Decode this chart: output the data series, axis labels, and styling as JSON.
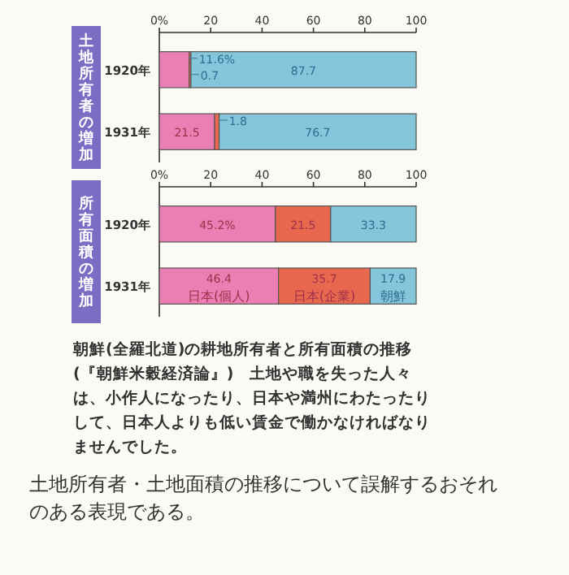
{
  "chart_data": [
    {
      "type": "bar",
      "orientation": "horizontal",
      "stacked": true,
      "title": "土地所有者の増加",
      "categories": [
        "1920年",
        "1931年"
      ],
      "series": [
        {
          "color": "#e97fb3",
          "values": [
            11.6,
            21.5
          ],
          "value_labels": [
            "11.6%",
            "21.5"
          ]
        },
        {
          "color": "#e8684f",
          "values": [
            0.7,
            1.8
          ],
          "value_labels": [
            "0.7",
            "1.8"
          ]
        },
        {
          "color": "#86c6da",
          "values": [
            87.7,
            76.7
          ],
          "value_labels": [
            "87.7",
            "76.7"
          ]
        }
      ],
      "xlim": [
        0,
        100
      ],
      "xticks": [
        {
          "value": 0,
          "label": "0%"
        },
        20,
        40,
        60,
        80,
        100
      ],
      "legend": false,
      "grid": false
    },
    {
      "type": "bar",
      "orientation": "horizontal",
      "stacked": true,
      "title": "所有面積の増加",
      "categories": [
        "1920年",
        "1931年"
      ],
      "series": [
        {
          "name": "日本(個人)",
          "color": "#e97fb3",
          "values": [
            45.2,
            46.4
          ],
          "value_labels": [
            "45.2%",
            "46.4"
          ]
        },
        {
          "name": "日本(企業)",
          "color": "#e8684f",
          "values": [
            21.5,
            35.7
          ],
          "value_labels": [
            "21.5",
            "35.7"
          ]
        },
        {
          "name": "朝鮮",
          "color": "#86c6da",
          "values": [
            33.3,
            17.9
          ],
          "value_labels": [
            "33.3",
            "17.9"
          ]
        }
      ],
      "xlim": [
        0,
        100
      ],
      "xticks": [
        {
          "value": 0,
          "label": "0%"
        },
        20,
        40,
        60,
        80,
        100
      ],
      "legend": false,
      "grid": false,
      "annotations": [
        "朝鮮(全羅北道)の耕地所有者と所有面積の推移(『朝鮮米穀経済論』)　土地や職を失った人々は、小作人になったり、日本や満州にわたったりして、日本人よりも低い賃金で働かなければなりませんでした。",
        "土地所有者・土地面積の推移について誤解するおそれのある表現である。"
      ]
    }
  ]
}
